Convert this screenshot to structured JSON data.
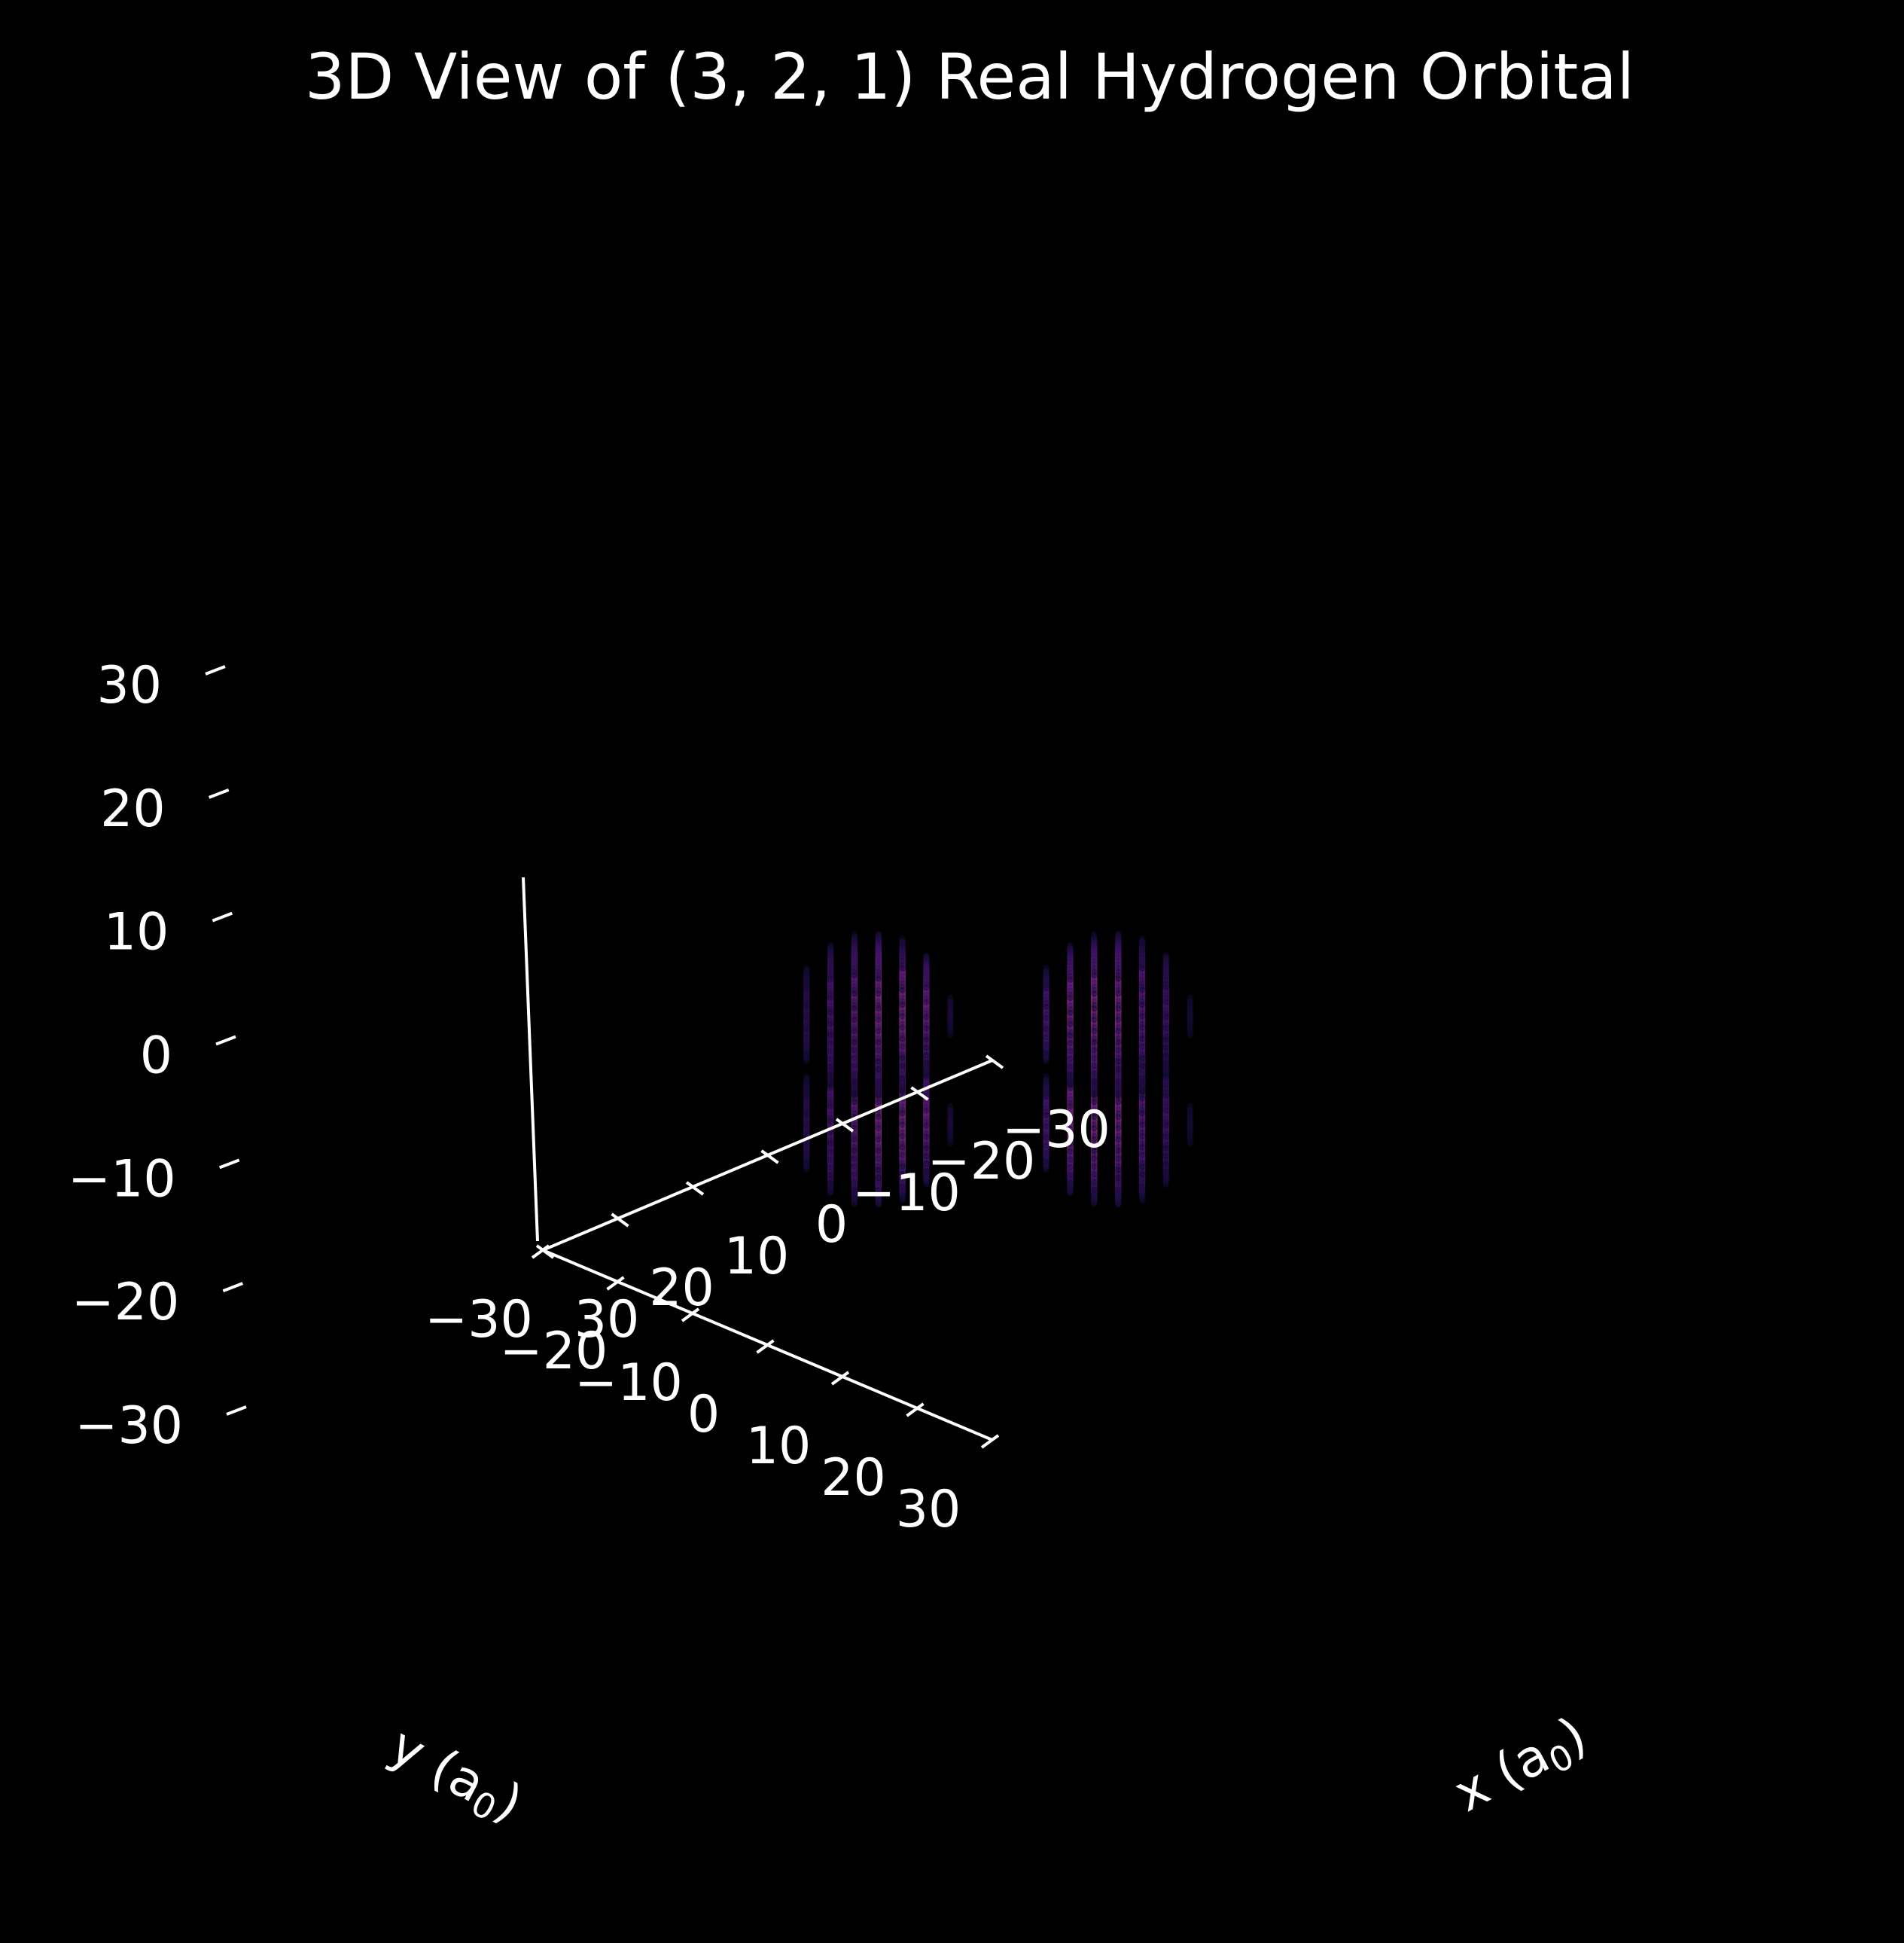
{
  "chart_data": {
    "type": "scatter",
    "title": "3D View of (3, 2, 1) Real Hydrogen Orbital",
    "orbital": {
      "n": 3,
      "l": 2,
      "m": 1
    },
    "axes": {
      "x": {
        "label": "x (a",
        "label_sub": "0",
        "label_end": ")",
        "range": [
          -30,
          30
        ],
        "ticks": [
          -30,
          -20,
          -10,
          0,
          10,
          20,
          30
        ],
        "tick_labels": [
          "−30",
          "−20",
          "−10",
          "0",
          "10",
          "20",
          "30"
        ]
      },
      "y": {
        "label": "y (a",
        "label_sub": "0",
        "label_end": ")",
        "range": [
          -30,
          30
        ],
        "ticks": [
          -30,
          -20,
          -10,
          0,
          10,
          20,
          30
        ],
        "tick_labels": [
          "−30",
          "−20",
          "−10",
          "0",
          "10",
          "20",
          "30"
        ]
      },
      "z": {
        "label": "",
        "range": [
          -30,
          30
        ],
        "ticks": [
          -30,
          -20,
          -10,
          0,
          10,
          20,
          30
        ],
        "tick_labels": [
          "−30",
          "−20",
          "−10",
          "0",
          "10",
          "20",
          "30"
        ]
      }
    },
    "lobes": [
      {
        "x": 8,
        "y": -8,
        "z": 9
      },
      {
        "x": -8,
        "y": 8,
        "z": 9
      },
      {
        "x": 8,
        "y": -8,
        "z": -9
      },
      {
        "x": -8,
        "y": 8,
        "z": -9
      }
    ],
    "lobe_extent": {
      "xy": 16,
      "z": 11
    },
    "colormap": "magma",
    "grid": false,
    "background": "#000000",
    "foreground": "#ffffff"
  }
}
